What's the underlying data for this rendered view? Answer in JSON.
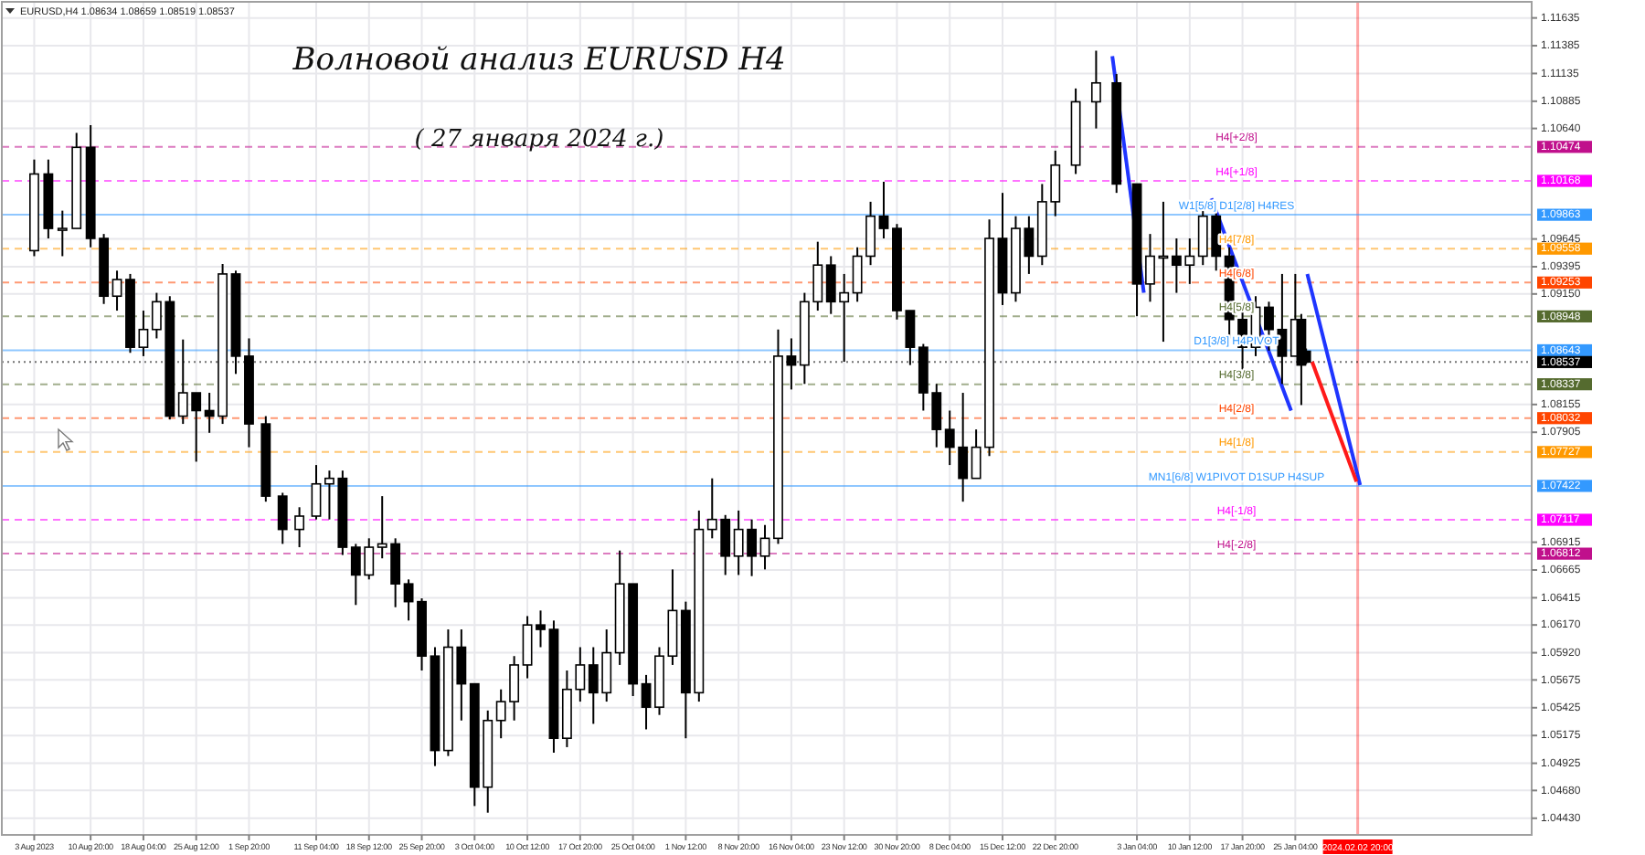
{
  "chart_data": {
    "type": "candlestick",
    "title": "Волновой анализ EURUSD H4",
    "subtitle": "( 27 января 2024 г.)",
    "annotations": [
      "EURUSD,H4 1.08634 1.08659 1.08519 1.08537",
      {
        "text": "H4[+2/8]",
        "x": "2024-01-17T00:00",
        "y": 1.10474
      },
      {
        "text": "H4[+1/8]",
        "x": "2024-01-17T00:00",
        "y": 1.10168
      },
      {
        "text": "W1[5/8] D1[2/8] H4RES",
        "x": "2024-01-17T00:00",
        "y": 1.09863
      },
      {
        "text": "H4[7/8]",
        "x": "2024-01-17T00:00",
        "y": 1.09558
      },
      {
        "text": "H4[6/8]",
        "x": "2024-01-17T00:00",
        "y": 1.09253
      },
      {
        "text": "H4[5/8]",
        "x": "2024-01-17T00:00",
        "y": 1.08948
      },
      {
        "text": "D1[3/8] H4PIVOT",
        "x": "2024-01-17T00:00",
        "y": 1.08643
      },
      {
        "text": "H4[3/8]",
        "x": "2024-01-17T00:00",
        "y": 1.08337
      },
      {
        "text": "H4[2/8]",
        "x": "2024-01-17T00:00",
        "y": 1.08032
      },
      {
        "text": "H4[1/8]",
        "x": "2024-01-17T00:00",
        "y": 1.07727
      },
      {
        "text": "MN1[6/8] W1PIVOT D1SUP H4SUP",
        "x": "2024-01-17T00:00",
        "y": 1.07422
      },
      {
        "text": "H4[-1/8]",
        "x": "2024-01-17T00:00",
        "y": 1.07117
      },
      {
        "text": "H4[-2/8]",
        "x": "2024-01-17T00:00",
        "y": 1.06812
      }
    ],
    "color": "#000000",
    "grid": true,
    "xlim": [
      "2023-07-29T12:00",
      "2024-02-27T00:00"
    ],
    "ylim": [
      1.0428,
      1.1178
    ],
    "xticks": [
      {
        "value": "2023-08-03",
        "label": "3 Aug 2023"
      },
      {
        "value": "2023-08-10T20:00",
        "label": "10 Aug 20:00"
      },
      {
        "value": "2023-08-18T04:00",
        "label": "18 Aug 04:00"
      },
      {
        "value": "2023-08-25T12:00",
        "label": "25 Aug 12:00"
      },
      {
        "value": "2023-09-01T20:00",
        "label": "1 Sep 20:00"
      },
      {
        "value": "2023-09-11T04:00",
        "label": "11 Sep 04:00"
      },
      {
        "value": "2023-09-18T12:00",
        "label": "18 Sep 12:00"
      },
      {
        "value": "2023-09-25T20:00",
        "label": "25 Sep 20:00"
      },
      {
        "value": "2023-10-03T04:00",
        "label": "3 Oct 04:00"
      },
      {
        "value": "2023-10-10T12:00",
        "label": "10 Oct 12:00"
      },
      {
        "value": "2023-10-17T20:00",
        "label": "17 Oct 20:00"
      },
      {
        "value": "2023-10-25T04:00",
        "label": "25 Oct 04:00"
      },
      {
        "value": "2023-11-01T12:00",
        "label": "1 Nov 12:00"
      },
      {
        "value": "2023-11-08T20:00",
        "label": "8 Nov 20:00"
      },
      {
        "value": "2023-11-16T04:00",
        "label": "16 Nov 04:00"
      },
      {
        "value": "2023-11-23T12:00",
        "label": "23 Nov 12:00"
      },
      {
        "value": "2023-11-30T20:00",
        "label": "30 Nov 20:00"
      },
      {
        "value": "2023-12-08T04:00",
        "label": "8 Dec 04:00"
      },
      {
        "value": "2023-12-15T12:00",
        "label": "15 Dec 12:00"
      },
      {
        "value": "2023-12-22T20:00",
        "label": "22 Dec 20:00"
      },
      {
        "value": "2024-01-03T04:00",
        "label": "3 Jan 04:00"
      },
      {
        "value": "2024-01-10T12:00",
        "label": "10 Jan 12:00"
      },
      {
        "value": "2024-01-17T20:00",
        "label": "17 Jan 20:00"
      },
      {
        "value": "2024-01-25T04:00",
        "label": "25 Jan 04:00"
      }
    ],
    "yticks": [
      1.11635,
      1.11385,
      1.11135,
      1.10885,
      {
        "value": 1.1064,
        "label": "1.10640"
      },
      1.09645,
      1.09395,
      {
        "value": 1.0915,
        "label": "1.09150"
      },
      1.08155,
      1.07905,
      1.06915,
      1.06665,
      1.06415,
      {
        "value": 1.0617,
        "label": "1.06170"
      },
      {
        "value": 1.0592,
        "label": "1.05920"
      },
      1.05675,
      1.05425,
      1.05175,
      1.04925,
      {
        "value": 1.0468,
        "label": "1.04680"
      },
      {
        "value": 1.0443,
        "label": "1.04430"
      }
    ],
    "x": [
      "2023-08-03T00:00",
      "2023-08-04T23:00",
      "2023-08-06T22:00",
      "2023-08-08T21:00",
      "2023-08-10T20:00",
      "2023-08-12T16:00",
      "2023-08-14T12:00",
      "2023-08-16T08:00",
      "2023-08-18T04:00",
      "2023-08-20T00:00",
      "2023-08-21T20:00",
      "2023-08-23T16:00",
      "2023-08-25T12:00",
      "2023-08-27T08:00",
      "2023-08-29T04:00",
      "2023-08-31T00:00",
      "2023-09-01T20:00",
      "2023-09-04T04:00",
      "2023-09-06T12:00",
      "2023-09-08T20:00",
      "2023-09-11T04:00",
      "2023-09-13T00:00",
      "2023-09-14T20:00",
      "2023-09-16T16:00",
      "2023-09-18T12:00",
      "2023-09-20T08:00",
      "2023-09-22T04:00",
      "2023-09-24T00:00",
      "2023-09-25T20:00",
      "2023-09-27T16:00",
      "2023-09-29T12:00",
      "2023-10-01T08:00",
      "2023-10-03T04:00",
      "2023-10-05T00:00",
      "2023-10-06T20:00",
      "2023-10-08T16:00",
      "2023-10-10T12:00",
      "2023-10-12T08:00",
      "2023-10-14T04:00",
      "2023-10-16T00:00",
      "2023-10-17T20:00",
      "2023-10-19T16:00",
      "2023-10-21T12:00",
      "2023-10-23T08:00",
      "2023-10-25T04:00",
      "2023-10-27T00:00",
      "2023-10-28T20:00",
      "2023-10-30T16:00",
      "2023-11-01T12:00",
      "2023-11-03T08:00",
      "2023-11-05T04:00",
      "2023-11-07T00:00",
      "2023-11-08T20:00",
      "2023-11-10T16:00",
      "2023-11-12T12:00",
      "2023-11-14T08:00",
      "2023-11-16T04:00",
      "2023-11-18T00:00",
      "2023-11-19T20:00",
      "2023-11-21T16:00",
      "2023-11-23T12:00",
      "2023-11-25T08:00",
      "2023-11-27T04:00",
      "2023-11-29T00:00",
      "2023-11-30T20:00",
      "2023-12-02T16:00",
      "2023-12-04T12:00",
      "2023-12-06T08:00",
      "2023-12-08T04:00",
      "2023-12-10T00:00",
      "2023-12-11T20:00",
      "2023-12-13T16:00",
      "2023-12-15T12:00",
      "2023-12-17T08:00",
      "2023-12-19T04:00",
      "2023-12-21T00:00",
      "2023-12-22T20:00",
      "2023-12-25T16:00",
      "2023-12-28T12:00",
      "2023-12-31T08:00",
      "2024-01-03T04:00",
      "2024-01-05T00:00",
      "2024-01-06T20:00",
      "2024-01-08T16:00",
      "2024-01-10T12:00",
      "2024-01-12T08:00",
      "2024-01-14T04:00",
      "2024-01-16T00:00",
      "2024-01-17T20:00",
      "2024-01-19T16:00",
      "2024-01-21T12:00",
      "2024-01-23T08:00",
      "2024-01-25T04:00",
      "2024-01-26T00:00",
      "2024-01-26T16:00"
    ],
    "ohlc": [
      [
        1.0954,
        1.1036,
        1.0949,
        1.1023
      ],
      [
        1.1023,
        1.1036,
        1.0965,
        1.0974
      ],
      [
        1.0974,
        1.099,
        1.0949,
        1.0974
      ],
      [
        1.0974,
        1.106,
        1.0974,
        1.1047
      ],
      [
        1.1047,
        1.1067,
        1.0957,
        1.0965
      ],
      [
        1.0965,
        1.0969,
        1.0906,
        1.0913
      ],
      [
        1.0913,
        1.0936,
        1.09,
        1.0928
      ],
      [
        1.0928,
        1.0933,
        1.0862,
        1.0867
      ],
      [
        1.0867,
        1.09,
        1.0859,
        1.0883
      ],
      [
        1.0883,
        1.0916,
        1.0875,
        1.0908
      ],
      [
        1.0908,
        1.0913,
        1.0802,
        1.0805
      ],
      [
        1.0805,
        1.0874,
        1.0798,
        1.0826
      ],
      [
        1.0826,
        1.0826,
        1.0764,
        1.081
      ],
      [
        1.081,
        1.0826,
        1.079,
        1.0805
      ],
      [
        1.0805,
        1.0942,
        1.0798,
        1.0933
      ],
      [
        1.0933,
        1.0936,
        1.0843,
        1.0859
      ],
      [
        1.0859,
        1.0875,
        1.0777,
        1.0798
      ],
      [
        1.0798,
        1.0805,
        1.0728,
        1.0733
      ],
      [
        1.0733,
        1.0736,
        1.069,
        1.0703
      ],
      [
        1.0703,
        1.0723,
        1.0687,
        1.0715
      ],
      [
        1.0715,
        1.0761,
        1.0712,
        1.0744
      ],
      [
        1.0744,
        1.0756,
        1.0712,
        1.0749
      ],
      [
        1.0749,
        1.0756,
        1.068,
        1.0687
      ],
      [
        1.0687,
        1.069,
        1.0635,
        1.0662
      ],
      [
        1.0662,
        1.0695,
        1.0658,
        1.0687
      ],
      [
        1.0687,
        1.0733,
        1.0677,
        1.069
      ],
      [
        1.069,
        1.0695,
        1.0633,
        1.0654
      ],
      [
        1.0654,
        1.0658,
        1.0621,
        1.0638
      ],
      [
        1.0638,
        1.0641,
        1.0576,
        1.0589
      ],
      [
        1.0589,
        1.0597,
        1.049,
        1.0504
      ],
      [
        1.0504,
        1.0613,
        1.0499,
        1.0597
      ],
      [
        1.0597,
        1.0613,
        1.0531,
        1.0564
      ],
      [
        1.0564,
        1.0564,
        1.0454,
        1.0471
      ],
      [
        1.0471,
        1.054,
        1.0448,
        1.0531
      ],
      [
        1.0531,
        1.0559,
        1.0515,
        1.0548
      ],
      [
        1.0548,
        1.0589,
        1.0531,
        1.0581
      ],
      [
        1.0581,
        1.0625,
        1.0569,
        1.0617
      ],
      [
        1.0617,
        1.063,
        1.0597,
        1.0613
      ],
      [
        1.0613,
        1.0621,
        1.0502,
        1.0515
      ],
      [
        1.0515,
        1.0576,
        1.0507,
        1.0559
      ],
      [
        1.0559,
        1.0597,
        1.0548,
        1.0581
      ],
      [
        1.0581,
        1.0597,
        1.0528,
        1.0556
      ],
      [
        1.0556,
        1.0613,
        1.0548,
        1.0592
      ],
      [
        1.0592,
        1.0684,
        1.0581,
        1.0654
      ],
      [
        1.0654,
        1.0654,
        1.0553,
        1.0564
      ],
      [
        1.0564,
        1.0572,
        1.0523,
        1.0543
      ],
      [
        1.0543,
        1.0597,
        1.0536,
        1.0589
      ],
      [
        1.0589,
        1.0667,
        1.0581,
        1.063
      ],
      [
        1.063,
        1.0638,
        1.0515,
        1.0556
      ],
      [
        1.0556,
        1.072,
        1.0548,
        1.0703
      ],
      [
        1.0703,
        1.0749,
        1.0695,
        1.0712
      ],
      [
        1.0712,
        1.0716,
        1.0662,
        1.0679
      ],
      [
        1.0679,
        1.072,
        1.0662,
        1.0703
      ],
      [
        1.0703,
        1.0712,
        1.0661,
        1.0679
      ],
      [
        1.0679,
        1.0707,
        1.0667,
        1.0695
      ],
      [
        1.0695,
        1.0883,
        1.069,
        1.0859
      ],
      [
        1.0859,
        1.0875,
        1.0829,
        1.0851
      ],
      [
        1.0851,
        1.0916,
        1.0834,
        1.0908
      ],
      [
        1.0908,
        1.0962,
        1.09,
        1.0941
      ],
      [
        1.0941,
        1.0949,
        1.0897,
        1.0908
      ],
      [
        1.0908,
        1.0933,
        1.0854,
        1.0916
      ],
      [
        1.0916,
        1.0957,
        1.0908,
        1.0949
      ],
      [
        1.0949,
        1.0998,
        1.0941,
        1.0985
      ],
      [
        1.0985,
        1.1016,
        1.0965,
        1.0974
      ],
      [
        1.0974,
        1.0978,
        1.0892,
        1.09
      ],
      [
        1.09,
        1.09,
        1.0851,
        1.0867
      ],
      [
        1.0867,
        1.087,
        1.081,
        1.0826
      ],
      [
        1.0826,
        1.0834,
        1.0777,
        1.0793
      ],
      [
        1.0793,
        1.081,
        1.0761,
        1.0777
      ],
      [
        1.0777,
        1.0826,
        1.0728,
        1.0749
      ],
      [
        1.0749,
        1.0793,
        1.0749,
        1.0777
      ],
      [
        1.0777,
        1.0982,
        1.0769,
        1.0965
      ],
      [
        1.0965,
        1.1006,
        1.0905,
        1.0916
      ],
      [
        1.0916,
        1.0985,
        1.0908,
        1.0974
      ],
      [
        1.0974,
        1.0985,
        1.0933,
        1.0949
      ],
      [
        1.0949,
        1.1014,
        1.0941,
        1.0998
      ],
      [
        1.0998,
        1.1044,
        1.0985,
        1.1031
      ],
      [
        1.1031,
        1.11,
        1.1023,
        1.1088
      ],
      [
        1.1088,
        1.1134,
        1.1064,
        1.1105
      ],
      [
        1.1105,
        1.1113,
        1.1006,
        1.1014
      ],
      [
        1.1014,
        1.1014,
        1.0895,
        1.0924
      ],
      [
        1.0924,
        1.0969,
        1.0908,
        1.0949
      ],
      [
        1.0949,
        1.0998,
        1.0872,
        1.0949
      ],
      [
        1.0949,
        1.0965,
        1.0916,
        1.0941
      ],
      [
        1.0941,
        1.0965,
        1.0924,
        1.0949
      ],
      [
        1.0949,
        1.0995,
        1.0941,
        1.0985
      ],
      [
        1.0985,
        1.099,
        1.0936,
        1.0949
      ],
      [
        1.0949,
        1.0957,
        1.0875,
        1.0892
      ],
      [
        1.0892,
        1.09,
        1.0846,
        1.0867
      ],
      [
        1.0867,
        1.0913,
        1.0859,
        1.0903
      ],
      [
        1.0903,
        1.0908,
        1.0864,
        1.0883
      ],
      [
        1.0883,
        1.0933,
        1.0834,
        1.0859
      ],
      [
        1.0859,
        1.0933,
        1.0859,
        1.0892
      ],
      [
        1.0892,
        1.0897,
        1.0815,
        1.0851
      ],
      [
        1.08634,
        1.08659,
        1.08519,
        1.08537
      ]
    ],
    "series": [
      {
        "type": "line",
        "color": "#1f35ff",
        "x": [
          "2023-12-30T18:00",
          "2024-01-04T03:00"
        ],
        "values": [
          1.1129,
          1.0916
        ]
      },
      {
        "type": "line",
        "color": "#1f35ff",
        "x": [
          "2024-01-13T12:00",
          "2024-01-24T14:00"
        ],
        "values": [
          1.1001,
          1.081
        ]
      },
      {
        "type": "line",
        "color": "#1f35ff",
        "x": [
          "2024-01-26T20:00",
          "2024-02-03T04:00"
        ],
        "values": [
          1.0933,
          1.0743
        ]
      },
      {
        "type": "line",
        "color": "#ff1a1a",
        "x": [
          "2024-01-27T12:00",
          "2024-02-02T16:00"
        ],
        "values": [
          1.0854,
          1.0746
        ]
      }
    ],
    "ref_lines": [
      {
        "axis": "x",
        "value": "2024-02-02T20:00",
        "label": "2024.02.02 20:00",
        "color": "#ff0000",
        "line_style": "solid"
      },
      {
        "axis": "y",
        "value": 1.10474,
        "label": "1.10474",
        "color": "#c0108c",
        "line_style": "dashed"
      },
      {
        "axis": "y",
        "value": 1.10168,
        "label": "1.10168",
        "color": "#ff00ff",
        "line_style": "dashed"
      },
      {
        "axis": "y",
        "value": 1.09863,
        "label": "1.09863",
        "color": "#3399ff",
        "line_style": "solid"
      },
      {
        "axis": "y",
        "value": 1.09558,
        "label": "1.09558",
        "color": "#ff9900",
        "line_style": "dashed"
      },
      {
        "axis": "y",
        "value": 1.09253,
        "label": "1.09253",
        "color": "#ff4500",
        "line_style": "dashed"
      },
      {
        "axis": "y",
        "value": 1.08948,
        "label": "1.08948",
        "color": "#556b2f",
        "line_style": "dashed"
      },
      {
        "axis": "y",
        "value": 1.08643,
        "label": "1.08643",
        "color": "#3399ff",
        "line_style": "solid"
      },
      {
        "axis": "y",
        "value": 1.08537,
        "label": "1.08537",
        "color": "#000000",
        "line_style": "dotted"
      },
      {
        "axis": "y",
        "value": 1.08337,
        "label": "1.08337",
        "color": "#556b2f",
        "line_style": "dashed"
      },
      {
        "axis": "y",
        "value": 1.08032,
        "label": "1.08032",
        "color": "#ff4500",
        "line_style": "dashed"
      },
      {
        "axis": "y",
        "value": 1.07727,
        "label": "1.07727",
        "color": "#ff9900",
        "line_style": "dashed"
      },
      {
        "axis": "y",
        "value": 1.07422,
        "label": "1.07422",
        "color": "#3399ff",
        "line_style": "solid"
      },
      {
        "axis": "y",
        "value": 1.07117,
        "label": "1.07117",
        "color": "#ff00ff",
        "line_style": "dashed"
      },
      {
        "axis": "y",
        "value": 1.06812,
        "label": "1.06812",
        "color": "#c0108c",
        "line_style": "dashed"
      }
    ]
  }
}
